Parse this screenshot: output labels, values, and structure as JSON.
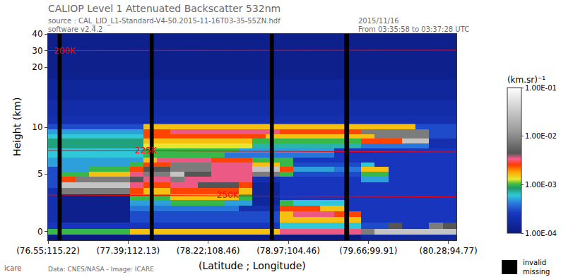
{
  "chart_data": {
    "type": "heatmap",
    "title": "CALIOP Level 1 Attenuated Backscatter 532nm",
    "source": "source : CAL_LID_L1-Standard-V4-50.2015-11-16T03-35-55ZN.hdf",
    "software": "software v2.4.2",
    "date": "2015/11/16",
    "time_span": "From 03:35:58 to 03:37:28 UTC",
    "credits": "Data: CNES/NASA - Image: ICARE",
    "logo": "icare",
    "xlabel": "(Latitude ; Longitude)",
    "ylabel": "Height (km)",
    "xlim": [
      0,
      5.1
    ],
    "xticks": [
      {
        "value": 0,
        "label": "(76.55;115.22)"
      },
      {
        "value": 1,
        "label": "(77.39;112.13)"
      },
      {
        "value": 2,
        "label": "(78.22;108.46)"
      },
      {
        "value": 3,
        "label": "(78.97;104.46)"
      },
      {
        "value": 4,
        "label": "(79.66;99.91)"
      },
      {
        "value": 5,
        "label": "(80.28;94.77)"
      }
    ],
    "ylim": [
      -0.75,
      40
    ],
    "y_breaks": [
      5,
      10,
      20
    ],
    "yticks": [
      0,
      5,
      10,
      20,
      30,
      40
    ],
    "colorbar": {
      "title": "(km.sr)⁻¹",
      "log": true,
      "range": [
        0.0001,
        0.1
      ],
      "ticks": [
        {
          "value": 0.0001,
          "label": "1.00E-04"
        },
        {
          "value": 0.001,
          "label": "1.00E-03"
        },
        {
          "value": 0.01,
          "label": "1.00E-02"
        },
        {
          "value": 0.1,
          "label": "1.00E-01"
        }
      ]
    },
    "invalid": {
      "label": [
        "invalid",
        "missing"
      ],
      "color": "#000000",
      "x_ranges": [
        [
          0.12,
          0.17
        ],
        [
          1.27,
          1.32
        ],
        [
          2.77,
          2.82
        ],
        [
          3.7,
          3.76
        ]
      ]
    },
    "isotherms": [
      {
        "label": "200K",
        "color": "#ff0000",
        "x": [
          0,
          5.1
        ],
        "y": [
          30.0,
          30.2
        ]
      },
      {
        "label": "225K",
        "color": "#ff0000",
        "x": [
          0,
          5.1
        ],
        "y": [
          7.5,
          7.35
        ]
      },
      {
        "label": "250K",
        "color": "#ff0000",
        "x": [
          0,
          5.1
        ],
        "y": [
          3.17,
          3.0
        ]
      }
    ],
    "x": [
      0.085,
      0.255,
      0.425,
      0.595,
      0.765,
      0.935,
      1.105,
      1.275,
      1.445,
      1.615,
      1.785,
      1.955,
      2.125,
      2.295,
      2.465,
      2.635,
      2.805,
      2.975,
      3.145,
      3.315,
      3.485,
      3.655,
      3.825,
      3.995,
      4.165,
      4.335,
      4.505,
      4.675,
      4.845,
      5.015
    ],
    "y": [
      -0.5,
      0,
      0.5,
      1,
      1.5,
      2,
      2.5,
      3,
      3.5,
      4,
      4.5,
      5,
      5.5,
      6,
      6.5,
      7,
      7.5,
      8,
      8.5,
      9,
      9.5,
      10,
      11,
      13,
      16,
      20,
      25,
      30,
      35,
      40
    ],
    "z": [
      [
        0.0001,
        0.0001,
        0.0001,
        0.0001,
        0.0001,
        0.0001,
        0.0001,
        0.0001,
        0.0001,
        0.0001,
        0.0001,
        0.0001,
        0.0001,
        0.0001,
        0.0001,
        0.0001,
        0.0001,
        0.0001,
        0.0001,
        0.0001,
        0.0001,
        0.0001,
        0.0001,
        0.00015,
        0.00015,
        0.00015,
        0.00015,
        0.00015,
        0.00015,
        0.00015
      ],
      [
        0.001,
        0.001,
        0.001,
        0.001,
        0.001,
        0.001,
        0.0016,
        0.0016,
        0.0016,
        0.0016,
        0.0016,
        0.0016,
        0.0016,
        0.0016,
        0.0016,
        0.0016,
        0.0016,
        0.0035,
        0.0035,
        0.0035,
        0.0035,
        0.0035,
        0.0035,
        0.008,
        0.03,
        0.03,
        0.03,
        0.03,
        0.03,
        0.03
      ],
      [
        0.00025,
        0.00025,
        0.00025,
        0.00025,
        0.00025,
        0.00025,
        0.00025,
        0.00025,
        0.00025,
        0.00025,
        0.00025,
        0.00025,
        0.00025,
        0.00025,
        0.00025,
        0.00025,
        0.00025,
        0.0006,
        0.0006,
        0.0006,
        0.0006,
        0.0006,
        0.0006,
        0.0003,
        0.0003,
        0.0045,
        0.00025,
        0.00025,
        0.008,
        0.0045
      ],
      [
        0.0002,
        0.00012,
        0.00012,
        0.00012,
        0.00012,
        0.00012,
        0.0003,
        0.0003,
        0.0003,
        0.0003,
        0.0003,
        0.0003,
        0.0003,
        0.0003,
        0.0003,
        0.0003,
        0.0003,
        0.0016,
        0.0016,
        0.0016,
        0.0016,
        0.0016,
        0.0016,
        0.00025,
        0.00025,
        0.00025,
        0.00025,
        0.00025,
        0.00025,
        0.00025
      ],
      [
        0.0002,
        0.00012,
        0.00012,
        0.00012,
        0.00012,
        0.00012,
        0.0003,
        0.0003,
        0.0003,
        0.0003,
        0.0003,
        0.0003,
        0.0003,
        0.0003,
        0.0003,
        0.0003,
        0.0003,
        0.0016,
        0.0035,
        0.0035,
        0.0035,
        0.0025,
        0.0025,
        0.00025,
        0.00025,
        0.00025,
        0.00025,
        0.00025,
        0.00025,
        0.00025
      ],
      [
        0.0002,
        0.00012,
        0.00012,
        0.00012,
        0.00012,
        0.00012,
        0.0004,
        0.0004,
        0.0004,
        0.0004,
        0.0004,
        0.0004,
        0.0004,
        0.0004,
        0.0002,
        0.0002,
        0.0002,
        0.0025,
        0.0025,
        0.0025,
        0.0016,
        0.0016,
        0.00025,
        0.00025,
        0.00025,
        0.00025,
        0.00025,
        0.00025,
        0.00025,
        0.00025
      ],
      [
        0.0002,
        0.00012,
        0.00012,
        0.00012,
        0.00012,
        0.00012,
        0.0005,
        0.0005,
        0.0005,
        0.001,
        0.001,
        0.001,
        0.001,
        0.0005,
        0.0005,
        0.00015,
        0.00015,
        0.001,
        0.0006,
        0.0006,
        0.0006,
        0.0006,
        0.00025,
        0.00025,
        0.00025,
        0.00025,
        0.00025,
        0.00025,
        0.00025,
        0.00025
      ],
      [
        0.0002,
        0.00012,
        0.00012,
        0.00012,
        0.00012,
        0.00012,
        0.001,
        0.001,
        0.001,
        0.0016,
        0.0016,
        0.0016,
        0.0016,
        0.0016,
        0.001,
        0.00015,
        0.00015,
        0.00025,
        0.00025,
        0.00025,
        0.00025,
        0.00025,
        0.00025,
        0.00025,
        0.00025,
        0.00025,
        0.00025,
        0.00025,
        0.00025,
        0.00025
      ],
      [
        0.0002,
        0.008,
        0.008,
        0.008,
        0.008,
        0.008,
        0.0025,
        0.0016,
        0.0016,
        0.0025,
        0.0025,
        0.0025,
        0.0025,
        0.0025,
        0.0016,
        0.00015,
        0.00015,
        0.00025,
        0.00025,
        0.00025,
        0.00025,
        0.00025,
        0.00025,
        0.00025,
        0.00025,
        0.00025,
        0.00025,
        0.00025,
        0.00025,
        0.00025
      ],
      [
        0.0003,
        0.03,
        0.03,
        0.03,
        0.03,
        0.03,
        0.0035,
        0.0025,
        0.0025,
        0.0035,
        0.0035,
        0.0045,
        0.0045,
        0.0045,
        0.0025,
        0.00015,
        0.00015,
        0.00025,
        0.00025,
        0.00025,
        0.00025,
        0.00025,
        0.00025,
        0.00025,
        0.00025,
        0.00025,
        0.00025,
        0.00025,
        0.00025,
        0.00025
      ],
      [
        0.0003,
        0.0025,
        0.008,
        0.008,
        0.008,
        0.008,
        0.0045,
        0.0035,
        0.0035,
        0.008,
        0.0035,
        0.0035,
        0.0035,
        0.0035,
        0.0035,
        0.0002,
        0.0002,
        0.00025,
        0.00025,
        0.00025,
        0.00025,
        0.00025,
        0.00025,
        0.0005,
        0.0005,
        0.00025,
        0.00025,
        0.00025,
        0.00025,
        0.00025
      ],
      [
        0.0003,
        0.001,
        0.001,
        0.0016,
        0.0016,
        0.0016,
        0.0035,
        0.008,
        0.008,
        0.03,
        0.0045,
        0.0045,
        0.0035,
        0.0035,
        0.0035,
        0.008,
        0.008,
        0.001,
        0.0003,
        0.0003,
        0.0003,
        0.0003,
        0.0003,
        0.001,
        0.001,
        0.00025,
        0.00025,
        0.00025,
        0.00025,
        0.00025
      ],
      [
        0.0003,
        0.0005,
        0.0005,
        0.001,
        0.001,
        0.001,
        0.0025,
        0.0045,
        0.0045,
        0.008,
        0.008,
        0.008,
        0.0035,
        0.0035,
        0.0035,
        0.03,
        0.03,
        0.0025,
        0.0005,
        0.0005,
        0.0005,
        0.0004,
        0.0004,
        0.0016,
        0.0016,
        0.00025,
        0.00025,
        0.00025,
        0.00025,
        0.00025
      ],
      [
        0.0005,
        0.0005,
        0.0005,
        0.0005,
        0.0005,
        0.0005,
        0.001,
        0.0025,
        0.0025,
        0.008,
        0.008,
        0.008,
        0.0035,
        0.0035,
        0.0035,
        0.0016,
        0.0016,
        0.001,
        0.0003,
        0.0003,
        0.0003,
        0.0003,
        0.0003,
        0.0006,
        0.00025,
        0.00025,
        0.00025,
        0.00025,
        0.00025,
        0.00025
      ],
      [
        0.0005,
        0.0005,
        0.0005,
        0.0005,
        0.0005,
        0.0005,
        0.0005,
        0.0016,
        0.0035,
        0.0035,
        0.0035,
        0.0035,
        0.0025,
        0.0025,
        0.0025,
        0.001,
        0.001,
        0.001,
        0.00025,
        0.00025,
        0.00025,
        0.00025,
        0.00025,
        0.00025,
        0.00025,
        0.00025,
        0.00025,
        0.00025,
        0.00025,
        0.00025
      ],
      [
        0.0006,
        0.0006,
        0.0006,
        0.0006,
        0.0006,
        0.0006,
        0.0006,
        0.001,
        0.001,
        0.001,
        0.001,
        0.001,
        0.001,
        0.0004,
        0.0004,
        0.0004,
        0.0004,
        0.0004,
        0.0004,
        0.0004,
        0.0004,
        0.00025,
        0.00025,
        0.00025,
        0.00025,
        0.00025,
        0.00025,
        0.00025,
        0.00025,
        0.00025
      ],
      [
        0.0006,
        0.0006,
        0.0006,
        0.0006,
        0.0006,
        0.0006,
        0.0006,
        0.001,
        0.001,
        0.001,
        0.001,
        0.001,
        0.001,
        0.001,
        0.0005,
        0.0005,
        0.0005,
        0.0005,
        0.0005,
        0.0005,
        0.0005,
        0.00025,
        0.00025,
        0.00025,
        0.00025,
        0.00025,
        0.00025,
        0.00025,
        0.00025,
        0.00025
      ],
      [
        0.0008,
        0.0008,
        0.0008,
        0.0008,
        0.0008,
        0.0008,
        0.0008,
        0.0013,
        0.0013,
        0.0013,
        0.0013,
        0.0013,
        0.0013,
        0.0013,
        0.0013,
        0.0007,
        0.0007,
        0.0007,
        0.0007,
        0.0007,
        0.0007,
        0.0007,
        0.0007,
        0.0004,
        0.0004,
        0.0004,
        0.0004,
        0.0004,
        0.0002,
        0.0002
      ],
      [
        0.0008,
        0.0008,
        0.0008,
        0.0008,
        0.0008,
        0.0008,
        0.0008,
        0.0016,
        0.0016,
        0.0016,
        0.0016,
        0.0016,
        0.0016,
        0.0016,
        0.0016,
        0.001,
        0.001,
        0.001,
        0.001,
        0.001,
        0.001,
        0.001,
        0.001,
        0.0025,
        0.0025,
        0.0025,
        0.03,
        0.03,
        0.0002,
        0.0002
      ],
      [
        0.0006,
        0.0006,
        0.0006,
        0.0006,
        0.0006,
        0.0006,
        0.0006,
        0.0025,
        0.0025,
        0.0025,
        0.0025,
        0.0025,
        0.0025,
        0.0025,
        0.0025,
        0.0025,
        0.0016,
        0.0016,
        0.0016,
        0.0016,
        0.0016,
        0.0016,
        0.0016,
        0.0016,
        0.008,
        0.008,
        0.008,
        0.008,
        0.0003,
        0.0003
      ],
      [
        0.0005,
        0.0005,
        0.0005,
        0.0005,
        0.0005,
        0.0005,
        0.0005,
        0.0025,
        0.0025,
        0.0035,
        0.0035,
        0.0035,
        0.0035,
        0.0035,
        0.0035,
        0.0035,
        0.0035,
        0.0025,
        0.0025,
        0.0025,
        0.0025,
        0.0025,
        0.0025,
        0.008,
        0.008,
        0.008,
        0.008,
        0.008,
        0.0003,
        0.0003
      ],
      [
        0.0003,
        0.0003,
        0.0003,
        0.0003,
        0.0003,
        0.0003,
        0.0003,
        0.0016,
        0.0016,
        0.0016,
        0.0016,
        0.0016,
        0.0016,
        0.0016,
        0.0016,
        0.0016,
        0.0016,
        0.0016,
        0.0016,
        0.0016,
        0.0016,
        0.0016,
        0.0016,
        0.0016,
        0.0016,
        0.0016,
        0.0016,
        0.0003,
        0.0003,
        0.0003
      ],
      [
        0.0002,
        0.0002,
        0.0002,
        0.0002,
        0.0002,
        0.0002,
        0.0002,
        0.0002,
        0.0002,
        0.0002,
        0.0002,
        0.0002,
        0.0002,
        0.0002,
        0.0002,
        0.0002,
        0.0002,
        0.0002,
        0.0002,
        0.0002,
        0.0002,
        0.0002,
        0.0002,
        0.0002,
        0.0002,
        0.0002,
        0.0002,
        0.0002,
        0.0002,
        0.0002
      ],
      [
        0.00018,
        0.00018,
        0.00018,
        0.00018,
        0.00018,
        0.00018,
        0.00018,
        0.00018,
        0.00018,
        0.00018,
        0.00018,
        0.00018,
        0.00018,
        0.00018,
        0.00018,
        0.00018,
        0.00018,
        0.00018,
        0.00018,
        0.00018,
        0.00018,
        0.00018,
        0.00018,
        0.00018,
        0.00018,
        0.00018,
        0.00018,
        0.00018,
        0.00018,
        0.00018
      ],
      [
        0.00015,
        0.00015,
        0.00015,
        0.00015,
        0.00015,
        0.00015,
        0.00015,
        0.00015,
        0.00015,
        0.00015,
        0.00015,
        0.00015,
        0.00015,
        0.00015,
        0.00015,
        0.00015,
        0.00015,
        0.00015,
        0.00015,
        0.00015,
        0.00015,
        0.00015,
        0.00015,
        0.00015,
        0.00015,
        0.00015,
        0.00015,
        0.00015,
        0.00015,
        0.00015
      ],
      [
        0.00012,
        0.00012,
        0.00012,
        0.00012,
        0.00012,
        0.00012,
        0.00012,
        0.00012,
        0.00012,
        0.00012,
        0.00012,
        0.00012,
        0.00012,
        0.00012,
        0.00012,
        0.00012,
        0.00012,
        0.00012,
        0.00012,
        0.00012,
        0.00012,
        0.00012,
        0.00012,
        0.00012,
        0.00012,
        0.00012,
        0.00012,
        0.00012,
        0.00012,
        0.00012
      ],
      [
        0.00012,
        0.00012,
        0.00012,
        0.00012,
        0.00012,
        0.00012,
        0.00012,
        0.00012,
        0.00012,
        0.00012,
        0.00012,
        0.00012,
        0.00012,
        0.00012,
        0.00012,
        0.00012,
        0.00012,
        0.00012,
        0.00012,
        0.00012,
        0.00012,
        0.00012,
        0.00012,
        0.00012,
        0.00012,
        0.00012,
        0.00012,
        0.00012,
        0.00012,
        0.00012
      ],
      [
        0.00012,
        0.00012,
        0.00012,
        0.00012,
        0.00012,
        0.00012,
        0.00012,
        0.00012,
        0.00012,
        0.00012,
        0.00012,
        0.00012,
        0.00012,
        0.00012,
        0.00012,
        0.00012,
        0.00012,
        0.00012,
        0.00012,
        0.00012,
        0.00012,
        0.00012,
        0.00012,
        0.00012,
        0.00012,
        0.00012,
        0.00012,
        0.00012,
        0.00012,
        0.00012
      ],
      [
        0.00012,
        0.00012,
        0.00012,
        0.00012,
        0.00012,
        0.00012,
        0.00012,
        0.00012,
        0.00012,
        0.00012,
        0.00012,
        0.00012,
        0.00012,
        0.00012,
        0.00012,
        0.00012,
        0.00012,
        0.00012,
        0.00012,
        0.00012,
        0.00012,
        0.00012,
        0.00012,
        0.00012,
        0.00012,
        0.00012,
        0.00012,
        0.00012,
        0.00012,
        0.00012
      ],
      [
        0.00012,
        0.00012,
        0.00012,
        0.00012,
        0.00012,
        0.00012,
        0.00012,
        0.00012,
        0.00012,
        0.00012,
        0.00012,
        0.00012,
        0.00012,
        0.00012,
        0.00012,
        0.00012,
        0.00012,
        0.00012,
        0.00012,
        0.00012,
        0.00012,
        0.00012,
        0.00012,
        0.00012,
        0.00012,
        0.00012,
        0.00012,
        0.00012,
        0.00012,
        0.00012
      ]
    ]
  }
}
